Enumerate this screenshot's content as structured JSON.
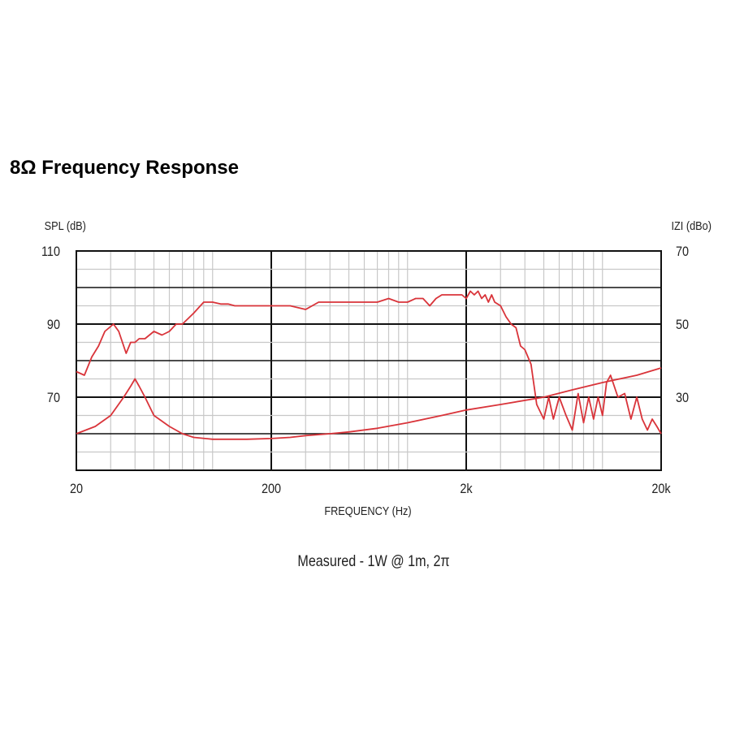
{
  "chart_data": {
    "type": "line",
    "title": "8Ω Frequency Response",
    "xlabel": "FREQUENCY (Hz)",
    "ylabel_left": "SPL (dB)",
    "ylabel_right": "IZI (dBo)",
    "caption": "Measured - 1W @ 1m, 2π",
    "x_scale": "log",
    "xlim": [
      20,
      20000
    ],
    "x_ticks": [
      {
        "value": 20,
        "label": "20"
      },
      {
        "value": 200,
        "label": "200"
      },
      {
        "value": 2000,
        "label": "2k"
      },
      {
        "value": 20000,
        "label": "20k"
      }
    ],
    "ylim_left": [
      50,
      110
    ],
    "y_ticks_left": [
      {
        "value": 110,
        "label": "110"
      },
      {
        "value": 90,
        "label": "90"
      },
      {
        "value": 70,
        "label": "70"
      }
    ],
    "ylim_right": [
      10,
      70
    ],
    "y_ticks_right": [
      {
        "value": 70,
        "label": "70"
      },
      {
        "value": 50,
        "label": "50"
      },
      {
        "value": 30,
        "label": "30"
      }
    ],
    "grid": true,
    "line_color": "#d9343a",
    "series": [
      {
        "axis": "left",
        "x": [
          20,
          22,
          24,
          26,
          28,
          31,
          33,
          36,
          38,
          40,
          42,
          45,
          50,
          55,
          60,
          65,
          70,
          80,
          90,
          100,
          110,
          120,
          130,
          150,
          180,
          200,
          250,
          300,
          350,
          400,
          450,
          500,
          600,
          700,
          800,
          900,
          1000,
          1100,
          1200,
          1300,
          1400,
          1500,
          1600,
          1700,
          1800,
          1900,
          2000,
          2100,
          2200,
          2300,
          2400,
          2500,
          2600,
          2700,
          2800,
          3000,
          3200,
          3400,
          3600,
          3800,
          4000,
          4300,
          4600,
          5000,
          5300,
          5600,
          6000,
          6500,
          7000,
          7500,
          8000,
          8500,
          9000,
          9500,
          10000,
          10500,
          11000,
          12000,
          13000,
          14000,
          15000,
          16000,
          17000,
          18000,
          19000,
          20000
        ],
        "values": [
          77,
          76,
          81,
          84,
          88,
          90,
          88,
          82,
          85,
          85,
          86,
          86,
          88,
          87,
          88,
          90,
          90,
          93,
          96,
          96,
          95.5,
          95.5,
          95,
          95,
          95,
          95,
          95,
          94,
          96,
          96,
          96,
          96,
          96,
          96,
          97,
          96,
          96,
          97,
          97,
          95,
          97,
          98,
          98,
          98,
          98,
          98,
          97,
          99,
          98,
          99,
          97,
          98,
          96,
          98,
          96,
          95,
          92,
          90,
          89,
          84,
          83,
          79,
          68,
          64,
          70,
          64,
          70,
          65,
          61,
          71,
          63,
          70,
          64,
          70,
          65,
          74,
          76,
          70,
          71,
          64,
          70,
          64,
          61,
          64,
          62,
          60
        ]
      },
      {
        "axis": "right",
        "x": [
          20,
          25,
          30,
          35,
          38,
          40,
          42,
          45,
          50,
          60,
          70,
          80,
          100,
          120,
          150,
          200,
          250,
          300,
          400,
          500,
          700,
          1000,
          1500,
          2000,
          3000,
          5000,
          7000,
          10000,
          15000,
          20000
        ],
        "values": [
          20,
          22,
          25,
          30,
          33,
          35,
          33,
          30,
          25,
          22,
          20,
          19,
          18.5,
          18.5,
          18.5,
          18.7,
          19,
          19.5,
          20,
          20.5,
          21.5,
          23,
          25,
          26.5,
          28,
          30,
          32,
          34,
          36,
          38
        ]
      }
    ]
  }
}
